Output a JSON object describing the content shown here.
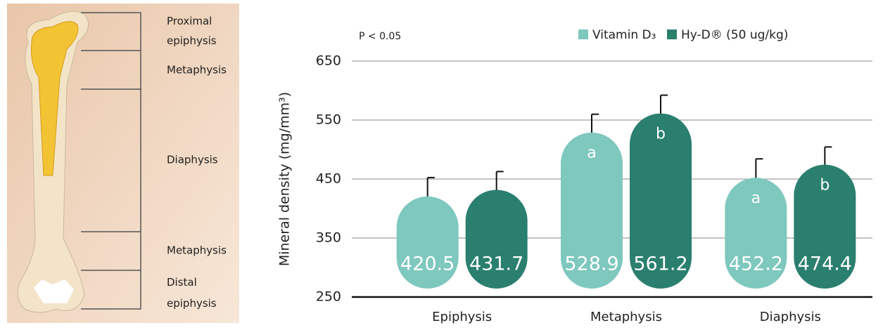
{
  "illustration": {
    "labels": [
      "Proximal epiphysis",
      "Metaphysis",
      "Diaphysis",
      "Metaphysis",
      "Distal epiphysis"
    ]
  },
  "chart_data": {
    "type": "bar",
    "subtitle": "P < 0.05",
    "ylabel": "Mineral density (mg/mm³)",
    "categories": [
      "Epiphysis",
      "Metaphysis",
      "Diaphysis"
    ],
    "series": [
      {
        "name": "Vitamin D₃",
        "color": "#7ec8be",
        "values": [
          420.5,
          528.9,
          452.2
        ],
        "errors": [
          32,
          31,
          32
        ],
        "annotations": [
          null,
          "a",
          "a"
        ]
      },
      {
        "name": "Hy-D® (50 ug/kg)",
        "color": "#2a7f6e",
        "values": [
          431.7,
          561.2,
          474.4
        ],
        "errors": [
          31,
          31,
          30
        ],
        "annotations": [
          null,
          "b",
          "b"
        ]
      }
    ],
    "ylim": [
      250,
      650
    ],
    "yticks": [
      250,
      350,
      450,
      550,
      650
    ],
    "grid": true,
    "legend": "top-right"
  }
}
